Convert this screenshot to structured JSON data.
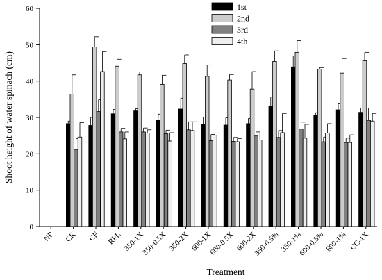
{
  "chart_data": {
    "type": "bar",
    "title": "",
    "xlabel": "Treatment",
    "ylabel": "Shoot height of water spinach (cm)",
    "ylim": [
      0,
      60
    ],
    "yticks": [
      0,
      10,
      20,
      30,
      40,
      50,
      60
    ],
    "grid": false,
    "legend_position": "top-center",
    "categories": [
      "NP",
      "CK",
      "CF",
      "RPL",
      "350-1X",
      "350-0.5X",
      "350-2X",
      "600-1X",
      "600-0.5X",
      "600-2X",
      "350-0.5%",
      "350-1%",
      "600-0.5%",
      "600-1%",
      "CC-1X"
    ],
    "series": [
      {
        "name": "1st",
        "color": "#000000",
        "values": [
          0,
          28.3,
          27.8,
          31.0,
          31.8,
          29.3,
          32.3,
          28.2,
          27.9,
          28.3,
          33.0,
          43.9,
          30.6,
          32.1,
          31.4
        ],
        "errors": [
          0,
          0.7,
          2.2,
          1.2,
          0.6,
          1.6,
          3.0,
          1.9,
          2.0,
          1.4,
          2.6,
          3.0,
          0.7,
          1.8,
          1.2
        ]
      },
      {
        "name": "2nd",
        "color": "#cccccc",
        "values": [
          0,
          36.4,
          49.4,
          44.1,
          41.7,
          39.1,
          44.8,
          41.3,
          40.3,
          37.8,
          45.4,
          47.9,
          43.3,
          42.2,
          45.6
        ],
        "errors": [
          0,
          5.3,
          2.8,
          1.9,
          0.8,
          2.5,
          2.4,
          3.1,
          1.5,
          4.8,
          2.9,
          3.2,
          0.4,
          4.0,
          2.3
        ]
      },
      {
        "name": "3rd",
        "color": "#808080",
        "values": [
          0,
          21.2,
          31.6,
          26.0,
          26.0,
          25.5,
          26.6,
          23.6,
          23.4,
          24.9,
          24.5,
          26.8,
          23.3,
          23.1,
          29.2
        ],
        "errors": [
          0,
          3.0,
          3.3,
          1.0,
          1.1,
          1.0,
          2.2,
          1.7,
          1.1,
          1.1,
          1.9,
          1.9,
          1.3,
          1.2,
          3.4
        ]
      },
      {
        "name": "4th",
        "color": "#eeeeee",
        "values": [
          0,
          24.6,
          42.6,
          24.1,
          25.7,
          23.5,
          26.4,
          25.1,
          23.3,
          23.8,
          25.8,
          24.3,
          25.7,
          23.1,
          29.0
        ],
        "errors": [
          0,
          4.0,
          5.5,
          1.9,
          0.9,
          2.3,
          2.4,
          2.5,
          0.9,
          1.9,
          5.3,
          3.8,
          2.6,
          2.1,
          2.1
        ]
      }
    ]
  }
}
